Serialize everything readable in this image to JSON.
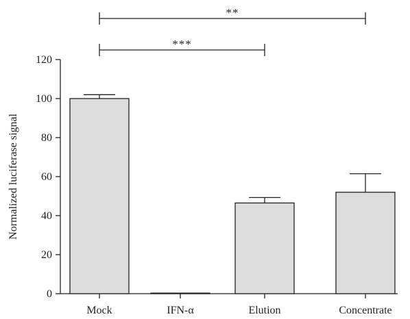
{
  "chart_data": {
    "type": "bar",
    "title": "",
    "xlabel": "",
    "ylabel": "Normalized luciferase signal",
    "categories": [
      "Mock",
      "IFN-α",
      "Elution",
      "Concentrate"
    ],
    "values": [
      100,
      0.3,
      46.5,
      52
    ],
    "errors": [
      2,
      0,
      2.8,
      9.5
    ],
    "ylim": [
      0,
      120
    ],
    "yticks": [
      0,
      20,
      40,
      60,
      80,
      100,
      120
    ],
    "yticks_labels": [
      "0",
      "20",
      "40",
      "60",
      "80",
      "100",
      "120"
    ],
    "grid": false,
    "legend": "none",
    "bar_color": "#dcdddf",
    "edge_color": "#231f20",
    "significance": [
      {
        "from": 0,
        "to": 3,
        "label": "**"
      },
      {
        "from": 0,
        "to": 2,
        "label": "***"
      }
    ]
  }
}
